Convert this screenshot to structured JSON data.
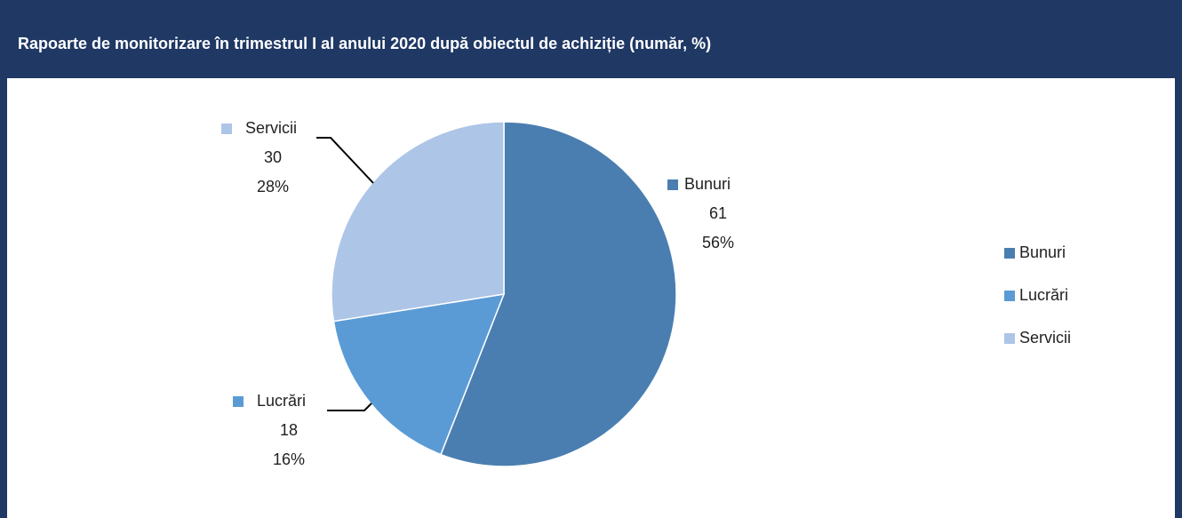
{
  "chart_data": {
    "type": "pie",
    "title": "Rapoarte de monitorizare în trimestrul I al anului 2020 după obiectul de achiziție (număr, %)",
    "categories": [
      "Bunuri",
      "Lucrări",
      "Servicii"
    ],
    "values": [
      61,
      18,
      30
    ],
    "percent_labels": [
      "56%",
      "16%",
      "28%"
    ],
    "colors": [
      "#4a7eb0",
      "#5b9bd5",
      "#adc5e7"
    ],
    "legend": "right"
  }
}
